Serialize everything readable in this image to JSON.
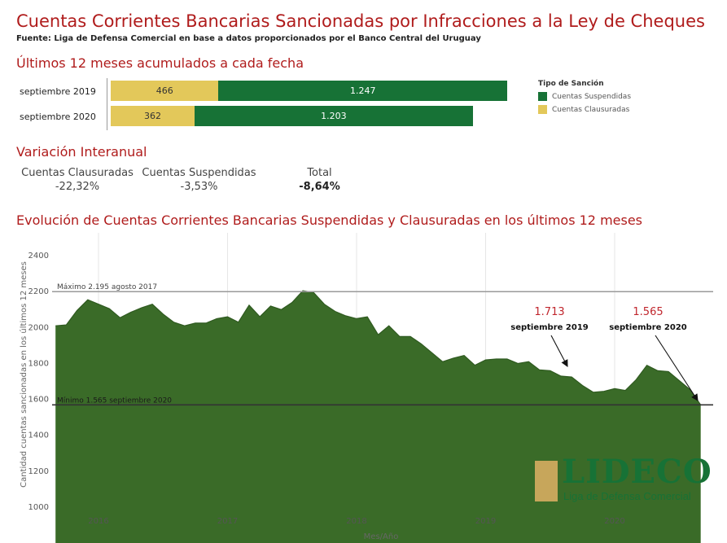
{
  "header": {
    "title": "Cuentas Corrientes Bancarias Sancionadas por Infracciones a la Ley de Cheques",
    "source": "Fuente: Liga de Defensa Comercial en base a datos proporcionados por el Banco Central del Uruguay"
  },
  "bars_section": {
    "title": "Últimos 12 meses acumulados a cada fecha",
    "rows": [
      {
        "label": "septiembre 2019",
        "clausuradas": 466,
        "clausuradas_label": "466",
        "suspendidas": 1247,
        "suspendidas_label": "1.247"
      },
      {
        "label": "septiembre 2020",
        "clausuradas": 362,
        "clausuradas_label": "362",
        "suspendidas": 1203,
        "suspendidas_label": "1.203"
      }
    ],
    "legend": {
      "title": "Tipo de Sanción",
      "items": [
        {
          "label": "Cuentas Suspendidas",
          "color": "#177236"
        },
        {
          "label": "Cuentas Clausuradas",
          "color": "#e3c85a"
        }
      ]
    }
  },
  "variation": {
    "title": "Variación Interanual",
    "items": [
      {
        "label": "Cuentas Clausuradas",
        "value": "-22,32%"
      },
      {
        "label": "Cuentas Suspendidas",
        "value": "-3,53%"
      },
      {
        "label": "Total",
        "value": "-8,64%"
      }
    ]
  },
  "chart_data": {
    "type": "area",
    "title": "Evolución de Cuentas Corrientes Bancarias Suspendidas y Clausuradas en los últimos 12 meses",
    "ylabel": "Cantidad cuentas sancionadas en los últimos 12 meses",
    "xlabel": "Mes/Año",
    "ylim": [
      1000,
      2400
    ],
    "yticks": [
      "1000",
      "1200",
      "1400",
      "1600",
      "1800",
      "2000",
      "2200",
      "2400"
    ],
    "xticks": [
      {
        "label": "2016",
        "x": 2016.0
      },
      {
        "label": "2017",
        "x": 2017.0
      },
      {
        "label": "2018",
        "x": 2018.0
      },
      {
        "label": "2019",
        "x": 2019.0
      },
      {
        "label": "2020",
        "x": 2020.0
      }
    ],
    "x_start": 2015.667,
    "x_step": 0.08333,
    "values": [
      2005,
      2010,
      2090,
      2150,
      2125,
      2100,
      2050,
      2080,
      2105,
      2125,
      2070,
      2025,
      2005,
      2020,
      2020,
      2045,
      2055,
      2025,
      2120,
      2055,
      2115,
      2095,
      2135,
      2200,
      2190,
      2125,
      2085,
      2060,
      2045,
      2055,
      1955,
      2005,
      1945,
      1945,
      1905,
      1855,
      1805,
      1825,
      1840,
      1785,
      1815,
      1820,
      1820,
      1795,
      1805,
      1760,
      1755,
      1725,
      1720,
      1673,
      1635,
      1640,
      1655,
      1645,
      1705,
      1785,
      1755,
      1750,
      1700,
      1650,
      1565
    ],
    "fill_color": "#3a6b28",
    "reference_lines": [
      {
        "label": "Máximo 2.195 agosto 2017",
        "value": 2195
      },
      {
        "label": "Mínimo 1.565 septiembre 2020",
        "value": 1565
      }
    ],
    "annotations": [
      {
        "value_label": "1.713",
        "date_label": "septiembre 2019",
        "x": 2019.667,
        "value": 1713
      },
      {
        "value_label": "1.565",
        "date_label": "septiembre 2020",
        "x": 2020.667,
        "value": 1565
      }
    ]
  },
  "logo": {
    "name": "LIDECO",
    "tagline": "Liga de Defensa Comercial",
    "accent_color": "#c7a65b",
    "text_color": "#177236"
  }
}
